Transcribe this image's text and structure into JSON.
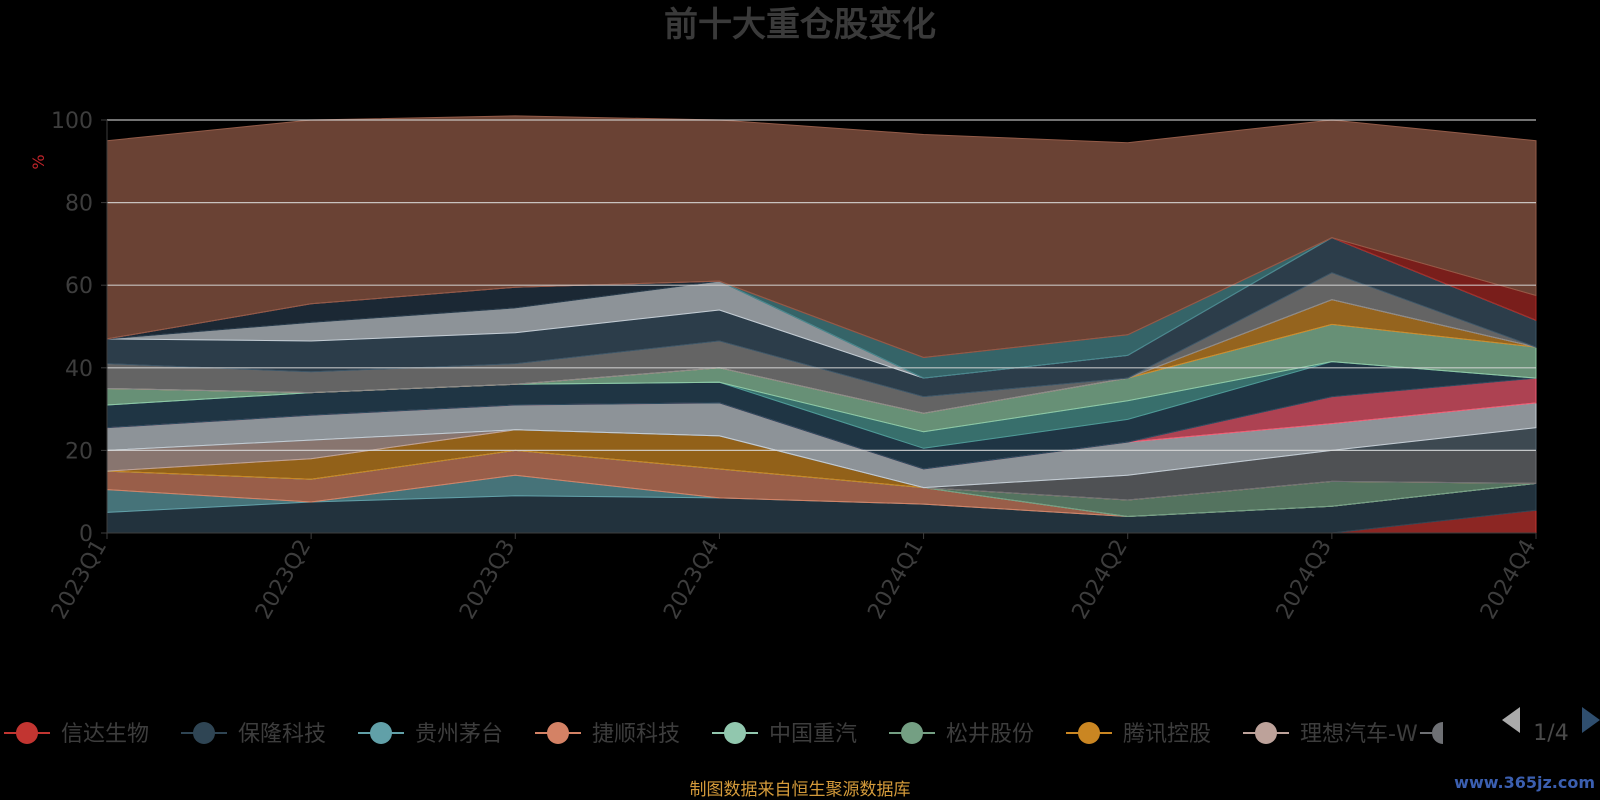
{
  "chart_data": {
    "type": "area",
    "title": "前十大重仓股变化",
    "ylabel": "%",
    "ylim": [
      0,
      100
    ],
    "yticks": [
      0,
      20,
      40,
      60,
      80,
      100
    ],
    "grid": true,
    "stacked": true,
    "categories": [
      "2023Q1",
      "2023Q2",
      "2023Q3",
      "2023Q4",
      "2024Q1",
      "2024Q2",
      "2024Q3",
      "2024Q4"
    ],
    "series": [
      {
        "name": "信达生物",
        "color": "#c23531",
        "values": [
          0,
          0,
          0,
          0,
          0,
          0,
          0,
          5.5
        ]
      },
      {
        "name": "保隆科技",
        "color": "#2f4554",
        "values": [
          5,
          7.5,
          9,
          8.5,
          7,
          4,
          6.5,
          6.5
        ]
      },
      {
        "name": "贵州茅台",
        "color": "#61a0a8",
        "values": [
          5.5,
          0,
          5,
          0,
          0,
          0,
          0,
          0
        ]
      },
      {
        "name": "捷顺科技",
        "color": "#d48265",
        "values": [
          4.5,
          5.5,
          6,
          7,
          4,
          0,
          0,
          0
        ]
      },
      {
        "name": "中国重汽",
        "color": "#91c7ae",
        "values": [
          0,
          0,
          0,
          0,
          0,
          0,
          0,
          0
        ]
      },
      {
        "name": "松井股份",
        "color": "#749f83",
        "values": [
          0,
          0,
          0,
          0,
          0,
          4,
          6,
          0
        ]
      },
      {
        "name": "腾讯控股",
        "color": "#ca8622",
        "values": [
          0,
          5,
          5,
          8,
          0,
          0,
          0,
          0
        ]
      },
      {
        "name": "理想汽车-W",
        "color": "#bda29a",
        "values": [
          5,
          4.5,
          0,
          0,
          0,
          0,
          0,
          0
        ]
      },
      {
        "name": "",
        "color": "#6e7074",
        "values": [
          0,
          0,
          0,
          0,
          0,
          6,
          7.5,
          8
        ]
      },
      {
        "name": "",
        "color": "#546570",
        "values": [
          0,
          0,
          0,
          0,
          0,
          0,
          0,
          5.5
        ]
      },
      {
        "name": "",
        "color": "#c4ccd3",
        "values": [
          5.5,
          6,
          6,
          8,
          4.5,
          8,
          6.5,
          6
        ]
      },
      {
        "name": "",
        "color": "#f05b72",
        "values": [
          0,
          0,
          0,
          0,
          0,
          0,
          6.5,
          6
        ]
      },
      {
        "name": "",
        "color": "#2b4a5e",
        "values": [
          5.5,
          5.5,
          5,
          5,
          5,
          5.5,
          8.5,
          0
        ]
      },
      {
        "name": "",
        "color": "#4e9a96",
        "values": [
          0,
          0,
          0,
          0,
          4,
          4.5,
          0,
          0
        ]
      },
      {
        "name": "",
        "color": "#8fc8a4",
        "values": [
          4,
          0,
          0,
          3.5,
          4.5,
          5.5,
          9,
          7.5
        ]
      },
      {
        "name": "",
        "color": "#cf8a2a",
        "values": [
          0,
          0,
          0,
          0,
          0,
          0,
          6,
          0
        ]
      },
      {
        "name": "",
        "color": "#c8a89e",
        "values": [
          0,
          0,
          0,
          0,
          0,
          0,
          0,
          0
        ]
      },
      {
        "name": "",
        "color": "#8a8a8a",
        "values": [
          6,
          5,
          5,
          6.5,
          4,
          0,
          6.5,
          0
        ]
      },
      {
        "name": "",
        "color": "#3d5566",
        "values": [
          6,
          7.5,
          7.5,
          7.5,
          4.5,
          5.5,
          8.5,
          6.5
        ]
      },
      {
        "name": "",
        "color": "#c4ccd3",
        "values": [
          0,
          4.5,
          6,
          7,
          0,
          0,
          0,
          0
        ]
      },
      {
        "name": "",
        "color": "#253848",
        "values": [
          0,
          4.5,
          5,
          0,
          0,
          0,
          0,
          0
        ]
      },
      {
        "name": "",
        "color": "#4a8a90",
        "values": [
          0,
          0,
          0,
          0,
          5,
          5,
          0,
          0
        ]
      },
      {
        "name": "",
        "color": "#a82a26",
        "values": [
          0,
          0,
          0,
          0,
          0,
          0,
          0,
          6
        ]
      },
      {
        "name": "",
        "color": "#935b48",
        "values": [
          48,
          44.5,
          41.5,
          39,
          54,
          46.5,
          28.5,
          37.5
        ]
      }
    ],
    "legend": {
      "position": "bottom",
      "page": "1/4"
    }
  },
  "footer_note": "制图数据来自恒生聚源数据库",
  "watermark": "www.365jz.com"
}
